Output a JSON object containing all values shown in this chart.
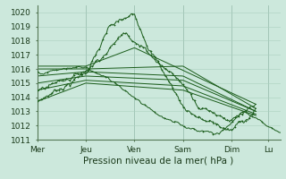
{
  "title": "Pression niveau de la mer( hPa )",
  "bg_color": "#cce8dc",
  "grid_color": "#aacfbf",
  "line_color": "#1a5c1a",
  "ylim": [
    1011,
    1020.5
  ],
  "yticks": [
    1011,
    1012,
    1013,
    1014,
    1015,
    1016,
    1017,
    1018,
    1019,
    1020
  ],
  "tick_fontsize": 6.5,
  "xlabel_fontsize": 7.5,
  "day_labels": [
    "Mer",
    "Jeu",
    "Ven",
    "Sam",
    "Dim",
    "Lu"
  ],
  "day_positions": [
    0,
    24,
    48,
    72,
    96,
    114
  ],
  "xlim": [
    0,
    120
  ]
}
